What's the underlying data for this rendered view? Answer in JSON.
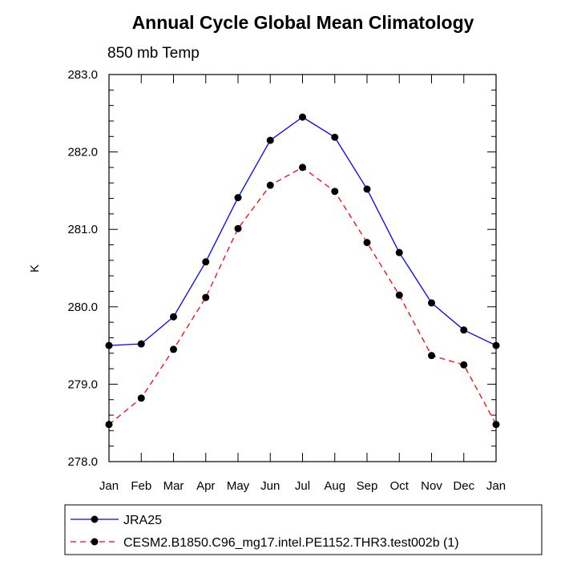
{
  "chart_data": {
    "type": "line",
    "title": "Annual Cycle Global Mean Climatology",
    "subtitle": "850 mb Temp",
    "xlabel": "",
    "ylabel": "K",
    "categories": [
      "Jan",
      "Feb",
      "Mar",
      "Apr",
      "May",
      "Jun",
      "Jul",
      "Aug",
      "Sep",
      "Oct",
      "Nov",
      "Dec",
      "Jan"
    ],
    "ylim": [
      278.0,
      283.0
    ],
    "yticks": [
      "278.0",
      "279.0",
      "280.0",
      "281.0",
      "282.0",
      "283.0"
    ],
    "grid": false,
    "legend_position": "bottom",
    "series": [
      {
        "name": "JRA25",
        "color": "#0000ff",
        "line_style": "solid",
        "marker": "filled-circle",
        "values": [
          279.5,
          279.52,
          279.87,
          280.58,
          281.41,
          282.15,
          282.45,
          282.19,
          281.52,
          280.7,
          280.05,
          279.7,
          279.5
        ]
      },
      {
        "name": "CESM2.B1850.C96_mg17.intel.PE1152.THR3.test002b (1)",
        "color": "#ff0000",
        "line_style": "dashed",
        "marker": "filled-circle",
        "values": [
          278.48,
          278.82,
          279.45,
          280.12,
          281.01,
          281.57,
          281.8,
          281.49,
          280.83,
          280.15,
          279.37,
          279.25,
          278.48
        ]
      }
    ]
  }
}
